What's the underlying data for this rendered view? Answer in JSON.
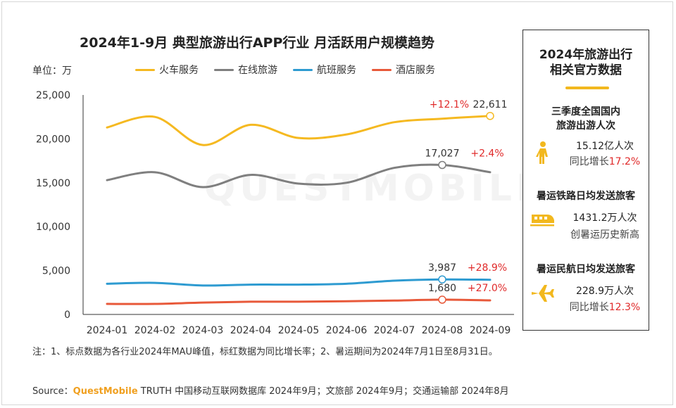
{
  "title": "2024年1-9月 典型旅游出行APP行业 月活跃用户规模趋势",
  "unit_label": "单位：万",
  "watermark": "QUESTMOBILE",
  "colors": {
    "train": "#f5b921",
    "travel": "#7f7f7f",
    "flight": "#2e9bd1",
    "hotel": "#e8593a",
    "growth_red": "#e02a2a",
    "accent": "#f2b81e"
  },
  "chart_data": {
    "type": "line",
    "categories": [
      "2024-01",
      "2024-02",
      "2024-03",
      "2024-04",
      "2024-05",
      "2024-06",
      "2024-07",
      "2024-08",
      "2024-09"
    ],
    "ylim": [
      0,
      25000
    ],
    "yticks": [
      "25,000",
      "20,000",
      "15,000",
      "10,000",
      "5,000",
      "0"
    ],
    "ytick_values": [
      25000,
      20000,
      15000,
      10000,
      5000,
      0
    ],
    "grid": false,
    "legend_position": "top",
    "series": [
      {
        "name": "火车服务",
        "color_key": "train",
        "values": [
          21300,
          22500,
          19300,
          21600,
          20100,
          20500,
          21900,
          22300,
          22611
        ]
      },
      {
        "name": "在线旅游",
        "color_key": "travel",
        "values": [
          15300,
          16200,
          14500,
          15900,
          14900,
          15000,
          16700,
          17027,
          16200
        ]
      },
      {
        "name": "航班服务",
        "color_key": "flight",
        "values": [
          3500,
          3600,
          3300,
          3400,
          3400,
          3500,
          3850,
          3987,
          3950
        ]
      },
      {
        "name": "酒店服务",
        "color_key": "hotel",
        "values": [
          1200,
          1200,
          1350,
          1450,
          1450,
          1500,
          1580,
          1680,
          1600
        ]
      }
    ],
    "annotations": [
      {
        "series": 0,
        "index": 8,
        "value_label": "22,611",
        "growth_label": "+12.1%",
        "growth_side": "left"
      },
      {
        "series": 1,
        "index": 7,
        "value_label": "17,027",
        "growth_label": "+2.4%",
        "growth_side": "right"
      },
      {
        "series": 2,
        "index": 7,
        "value_label": "3,987",
        "growth_label": "+28.9%",
        "growth_side": "right"
      },
      {
        "series": 3,
        "index": 7,
        "value_label": "1,680",
        "growth_label": "+27.0%",
        "growth_side": "right"
      }
    ]
  },
  "side_panel": {
    "title_line1": "2024年旅游出行",
    "title_line2": "相关官方数据",
    "stats": [
      {
        "heading_line1": "三季度全国国内",
        "heading_line2": "旅游出游人次",
        "icon": "walking-person-icon",
        "value": "15.12亿人次",
        "sub_prefix": "同比增长",
        "sub_highlight": "17.2%"
      },
      {
        "heading_line1": "暑运铁路日均发送旅客",
        "heading_line2": "",
        "icon": "train-icon",
        "value": "1431.2万人次",
        "sub_prefix": "创暑运历史新高",
        "sub_highlight": ""
      },
      {
        "heading_line1": "暑运民航日均发送旅客",
        "heading_line2": "",
        "icon": "airplane-icon",
        "value": "228.9万人次",
        "sub_prefix": "同比增长",
        "sub_highlight": "12.3%"
      }
    ]
  },
  "note": "注：1、标点数据为各行业2024年MAU峰值，标红数据为同比增长率；2、暑运期间为2024年7月1日至8月31日。",
  "source": {
    "prefix": "Source：",
    "brand": "QuestMobile",
    "rest": " TRUTH 中国移动互联网数据库 2024年9月；文旅部 2024年9月；交通运输部 2024年8月"
  }
}
